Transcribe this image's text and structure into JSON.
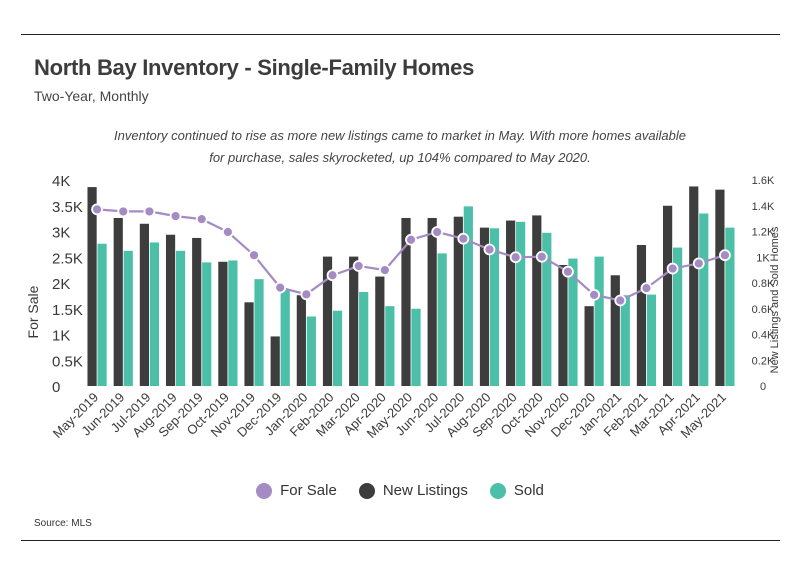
{
  "header": {
    "title": "North Bay Inventory - Single-Family Homes",
    "subtitle": "Two-Year, Monthly",
    "annotation": "Inventory continued to rise as more new listings came to market in May. With more homes available for purchase, sales skyrocketed, up 104% compared to May 2020.",
    "source": "Source:  MLS"
  },
  "colors": {
    "for_sale": "#a58bc3",
    "new_listings": "#3d3d3d",
    "sold": "#4bbfa8"
  },
  "chart_data": {
    "type": "bar",
    "categories": [
      "May-2019",
      "Jun-2019",
      "Jul-2019",
      "Aug-2019",
      "Sep-2019",
      "Oct-2019",
      "Nov-2019",
      "Dec-2019",
      "Jan-2020",
      "Feb-2020",
      "Mar-2020",
      "Apr-2020",
      "May-2020",
      "Jun-2020",
      "Jul-2020",
      "Aug-2020",
      "Sep-2020",
      "Oct-2020",
      "Nov-2020",
      "Dec-2020",
      "Jan-2021",
      "Feb-2021",
      "Mar-2021",
      "Apr-2021",
      "May-2021"
    ],
    "ylabel": "For Sale",
    "y2label": "New Listings and Sold Homes",
    "ylim": [
      0,
      4000
    ],
    "y2lim": [
      0,
      1600
    ],
    "y_ticks": [
      "0",
      "0.5K",
      "1K",
      "1.5K",
      "2K",
      "2.5K",
      "3K",
      "3.5K",
      "4K"
    ],
    "y2_ticks": [
      "0",
      "0.2K",
      "0.4K",
      "0.6K",
      "0.8K",
      "1K",
      "1.2K",
      "1.4K",
      "1.6K"
    ],
    "legend_position": "bottom",
    "series": [
      {
        "name": "For Sale",
        "type": "line",
        "axis": "left",
        "values": [
          3430,
          3390,
          3390,
          3300,
          3240,
          2990,
          2540,
          1910,
          1780,
          2150,
          2330,
          2250,
          2840,
          2990,
          2860,
          2650,
          2500,
          2510,
          2220,
          1770,
          1660,
          1900,
          2280,
          2380,
          2540
        ]
      },
      {
        "name": "New Listings",
        "type": "bar",
        "axis": "right",
        "values": [
          1545,
          1305,
          1260,
          1175,
          1150,
          965,
          650,
          385,
          705,
          1005,
          1005,
          850,
          1305,
          1305,
          1315,
          1230,
          1285,
          1325,
          940,
          620,
          860,
          1095,
          1400,
          1550,
          1525
        ]
      },
      {
        "name": "Sold",
        "type": "bar",
        "axis": "right",
        "values": [
          1105,
          1050,
          1115,
          1050,
          960,
          975,
          830,
          750,
          540,
          585,
          730,
          620,
          600,
          1030,
          1395,
          1225,
          1275,
          1190,
          990,
          1005,
          705,
          710,
          1075,
          1340,
          1230
        ]
      }
    ]
  }
}
